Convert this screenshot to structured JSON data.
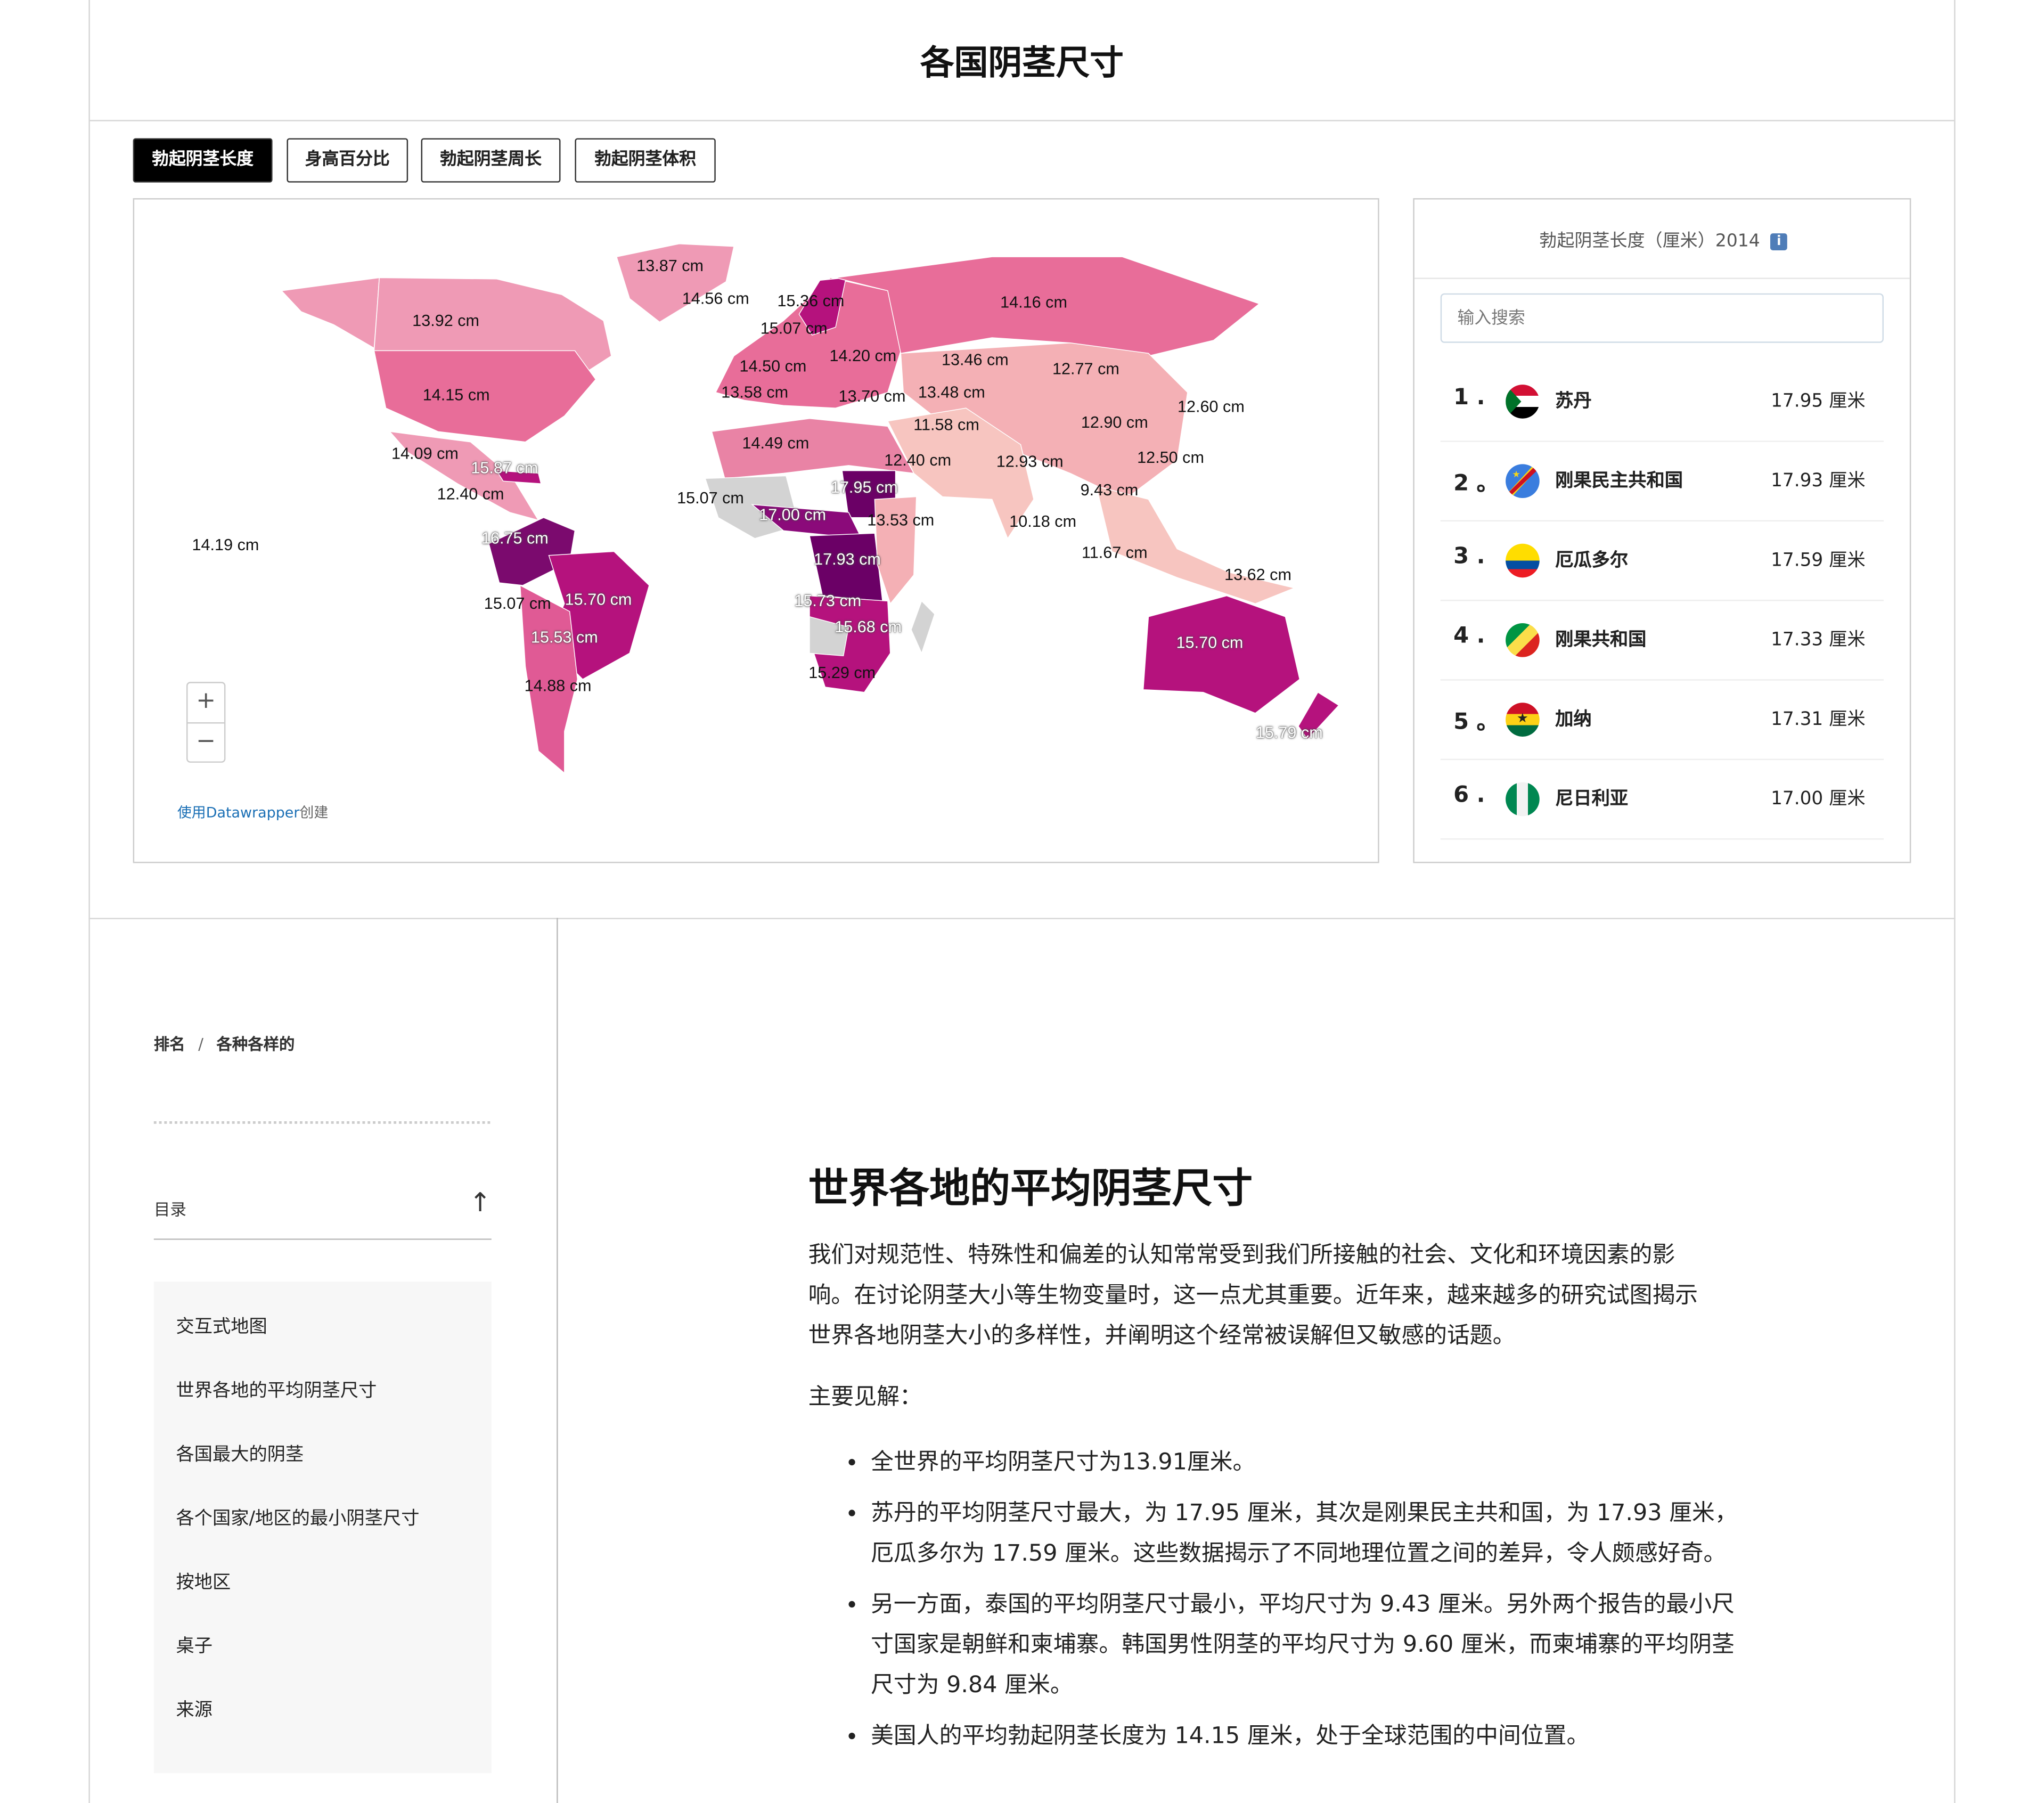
{
  "page": {
    "title": "各国阴茎尺寸"
  },
  "tabs": [
    {
      "label": "勃起阴茎长度",
      "active": true
    },
    {
      "label": "身高百分比",
      "active": false
    },
    {
      "label": "勃起阴茎周长",
      "active": false
    },
    {
      "label": "勃起阴茎体积",
      "active": false
    }
  ],
  "map": {
    "colors": {
      "darkest": "#6b0066",
      "dark": "#b5127d",
      "mid": "#e86d99",
      "light": "#ef9ab5",
      "lightest": "#f7c5c0",
      "no_data": "#d3d3d3"
    },
    "labels": [
      "13.87 cm",
      "14.56 cm",
      "15.36 cm",
      "15.07 cm",
      "13.92 cm",
      "14.20 cm",
      "13.46 cm",
      "14.16 cm",
      "12.77 cm",
      "14.50 cm",
      "13.58 cm",
      "13.70 cm",
      "13.48 cm",
      "14.15 cm",
      "12.60 cm",
      "11.58 cm",
      "12.90 cm",
      "14.49 cm",
      "14.09 cm",
      "15.87 cm",
      "12.40 cm",
      "12.93 cm",
      "12.50 cm",
      "12.40 cm",
      "17.95 cm",
      "15.07 cm",
      "9.43 cm",
      "17.00 cm",
      "13.53 cm",
      "10.18 cm",
      "14.19 cm",
      "16.75 cm",
      "11.67 cm",
      "17.93 cm",
      "13.62 cm",
      "15.07 cm",
      "15.70 cm",
      "15.73 cm",
      "15.53 cm",
      "15.68 cm",
      "15.70 cm",
      "14.88 cm",
      "15.29 cm",
      "15.79 cm"
    ],
    "zoom_in": "+",
    "zoom_out": "−",
    "credit_link": "使用Datawrapper",
    "credit_suffix": "创建"
  },
  "ranking": {
    "title": "勃起阴茎长度（厘米）2014",
    "info_icon": "i",
    "search_placeholder": "输入搜索",
    "rows": [
      {
        "rank": "1 .",
        "country": "苏丹",
        "value": "17.95 厘米",
        "flag": "sudan"
      },
      {
        "rank": "2 。",
        "country": "刚果民主共和国",
        "value": "17.93 厘米",
        "flag": "dr-congo"
      },
      {
        "rank": "3 .",
        "country": "厄瓜多尔",
        "value": "17.59 厘米",
        "flag": "ecuador"
      },
      {
        "rank": "4 .",
        "country": "刚果共和国",
        "value": "17.33 厘米",
        "flag": "congo"
      },
      {
        "rank": "5 。",
        "country": "加纳",
        "value": "17.31 厘米",
        "flag": "ghana"
      },
      {
        "rank": "6 .",
        "country": "尼日利亚",
        "value": "17.00 厘米",
        "flag": "nigeria"
      }
    ]
  },
  "breadcrumb": {
    "items": [
      "排名",
      "各种各样的"
    ],
    "separator": "/"
  },
  "toc": {
    "label": "目录",
    "up_icon": "↑",
    "items": [
      "交互式地图",
      "世界各地的平均阴茎尺寸",
      "各国最大的阴茎",
      "各个国家/地区的最小阴茎尺寸",
      "按地区",
      "桌子",
      "来源"
    ]
  },
  "article": {
    "heading": "世界各地的平均阴茎尺寸",
    "paragraph": "我们对规范性、特殊性和偏差的认知常常受到我们所接触的社会、文化和环境因素的影响。在讨论阴茎大小等生物变量时，这一点尤其重要。近年来，越来越多的研究试图揭示世界各地阴茎大小的多样性，并阐明这个经常被误解但又敏感的话题。",
    "insights_label": "主要见解：",
    "bullets": [
      "全世界的平均阴茎尺寸为13.91厘米。",
      "苏丹的平均阴茎尺寸最大，为 17.95 厘米，其次是刚果民主共和国，为 17.93 厘米，厄瓜多尔为 17.59 厘米。这些数据揭示了不同地理位置之间的差异，令人颇感好奇。",
      "另一方面，泰国的平均阴茎尺寸最小，平均尺寸为 9.43 厘米。另外两个报告的最小尺寸国家是朝鲜和柬埔寨。韩国男性阴茎的平均尺寸为 9.60 厘米，而柬埔寨的平均阴茎尺寸为 9.84 厘米。",
      "美国人的平均勃起阴茎长度为 14.15 厘米，处于全球范围的中间位置。"
    ]
  }
}
